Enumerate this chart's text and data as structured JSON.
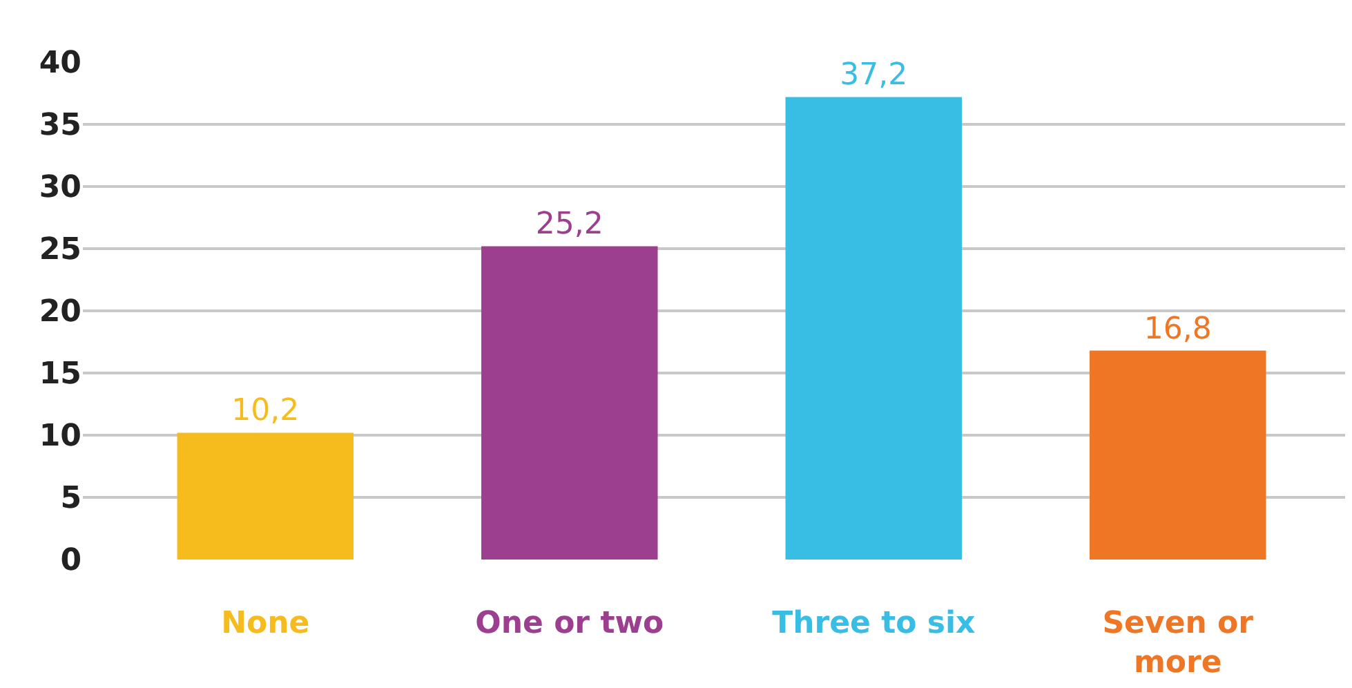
{
  "chart_data": {
    "type": "bar",
    "categories": [
      "None",
      "One or two",
      "Three to six",
      "Seven or more"
    ],
    "values": [
      10.2,
      25.2,
      37.2,
      16.8
    ],
    "colors": [
      "#f6bc1e",
      "#9b3f8e",
      "#38bde4",
      "#ee7625"
    ],
    "value_labels": [
      "10,2",
      "25,2",
      "37,2",
      "16,8"
    ],
    "ylim": [
      0,
      40
    ],
    "yticks": [
      0,
      5,
      10,
      15,
      20,
      25,
      30,
      35,
      40
    ],
    "grid": "y"
  }
}
